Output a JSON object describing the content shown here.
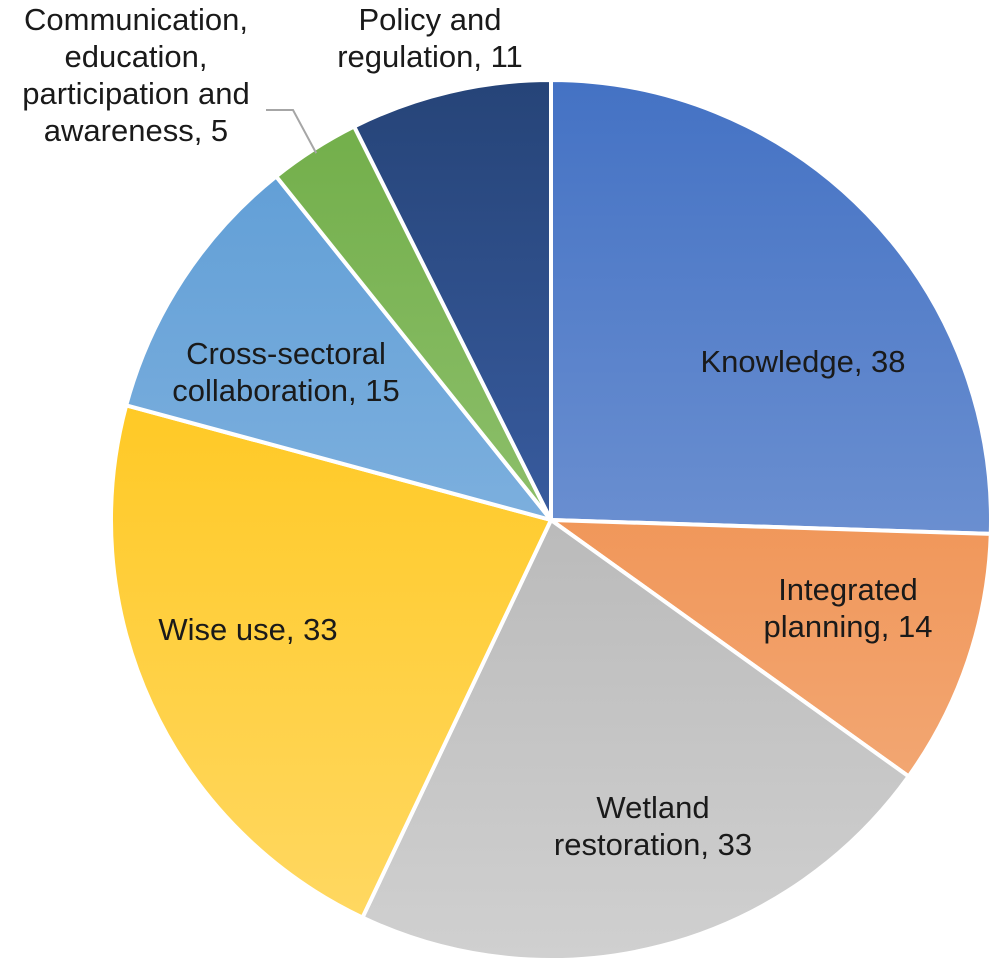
{
  "chart_data": {
    "type": "pie",
    "title": "",
    "slices": [
      {
        "label": "Knowledge",
        "value": 38,
        "display": "Knowledge, 38",
        "color_light": "#8eaadc",
        "color_dark": "#4472c4"
      },
      {
        "label": "Integrated planning",
        "value": 14,
        "display": "Integrated planning, 14",
        "color_light": "#f4b183",
        "color_dark": "#ed7d31"
      },
      {
        "label": "Wetland restoration",
        "value": 33,
        "display": "Wetland restoration, 33",
        "color_light": "#d0d0d0",
        "color_dark": "#a5a5a5"
      },
      {
        "label": "Wise use",
        "value": 33,
        "display": "Wise use, 33",
        "color_light": "#ffd966",
        "color_dark": "#ffc000"
      },
      {
        "label": "Cross-sectoral collaboration",
        "value": 15,
        "display": "Cross-sectoral collaboration, 15",
        "color_light": "#9dc3e6",
        "color_dark": "#5b9bd5"
      },
      {
        "label": "Communication, education, participation and awareness",
        "value": 5,
        "display": "Communication, education, participation and awareness, 5",
        "color_light": "#a9d18e",
        "color_dark": "#70ad47"
      },
      {
        "label": "Policy and regulation",
        "value": 11,
        "display": "Policy and regulation, 11",
        "color_light": "#4a72c4",
        "color_dark": "#264478"
      }
    ],
    "start_angle": "12 o'clock",
    "direction": "clockwise",
    "legend": "none",
    "data_labels": "category name and value",
    "label_lines": {
      "Knowledge": [
        "Knowledge, 38"
      ],
      "Integrated planning": [
        "Integrated",
        "planning, 14"
      ],
      "Wetland restoration": [
        "Wetland",
        "restoration, 33"
      ],
      "Wise use": [
        "Wise use, 33"
      ],
      "Cross-sectoral collaboration": [
        "Cross-sectoral",
        "collaboration, 15"
      ],
      "Communication, education, participation and awareness": [
        "Communication,",
        "education,",
        "participation and",
        "awareness, 5"
      ],
      "Policy and regulation": [
        "Policy and",
        "regulation, 11"
      ]
    }
  }
}
